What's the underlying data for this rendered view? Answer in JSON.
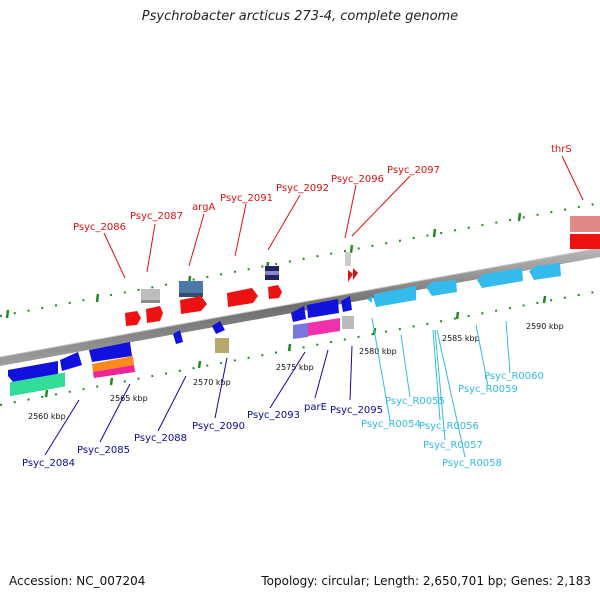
{
  "header": {
    "title": "Psychrobacter arcticus 273-4, complete genome"
  },
  "footer": {
    "accession": "Accession: NC_007204",
    "summary": "Topology: circular; Length: 2,650,701 bp; Genes: 2,183"
  },
  "colors": {
    "top_label": "#dd1111",
    "bottom_label": "#0b0b9a",
    "rna_label": "#33bbdd",
    "backbone": "#8c8c8c",
    "tick": "#228822"
  },
  "scale_labels": [
    "2560 kbp",
    "2565 kbp",
    "2570 kbp",
    "2575 kbp",
    "2580 kbp",
    "2585 kbp",
    "2590 kbp"
  ],
  "top_labels": [
    "Psyc_2086",
    "Psyc_2087",
    "argA",
    "Psyc_2091",
    "Psyc_2092",
    "Psyc_2096",
    "Psyc_2097",
    "thrS"
  ],
  "bottom_labels": [
    "Psyc_2084",
    "Psyc_2085",
    "Psyc_2088",
    "Psyc_2090",
    "Psyc_2093",
    "parE",
    "Psyc_2095"
  ],
  "rna_labels": [
    "Psyc_R0054",
    "Psyc_R0055",
    "Psyc_R0056",
    "Psyc_R0057",
    "Psyc_R0058",
    "Psyc_R0059",
    "Psyc_R0060"
  ]
}
